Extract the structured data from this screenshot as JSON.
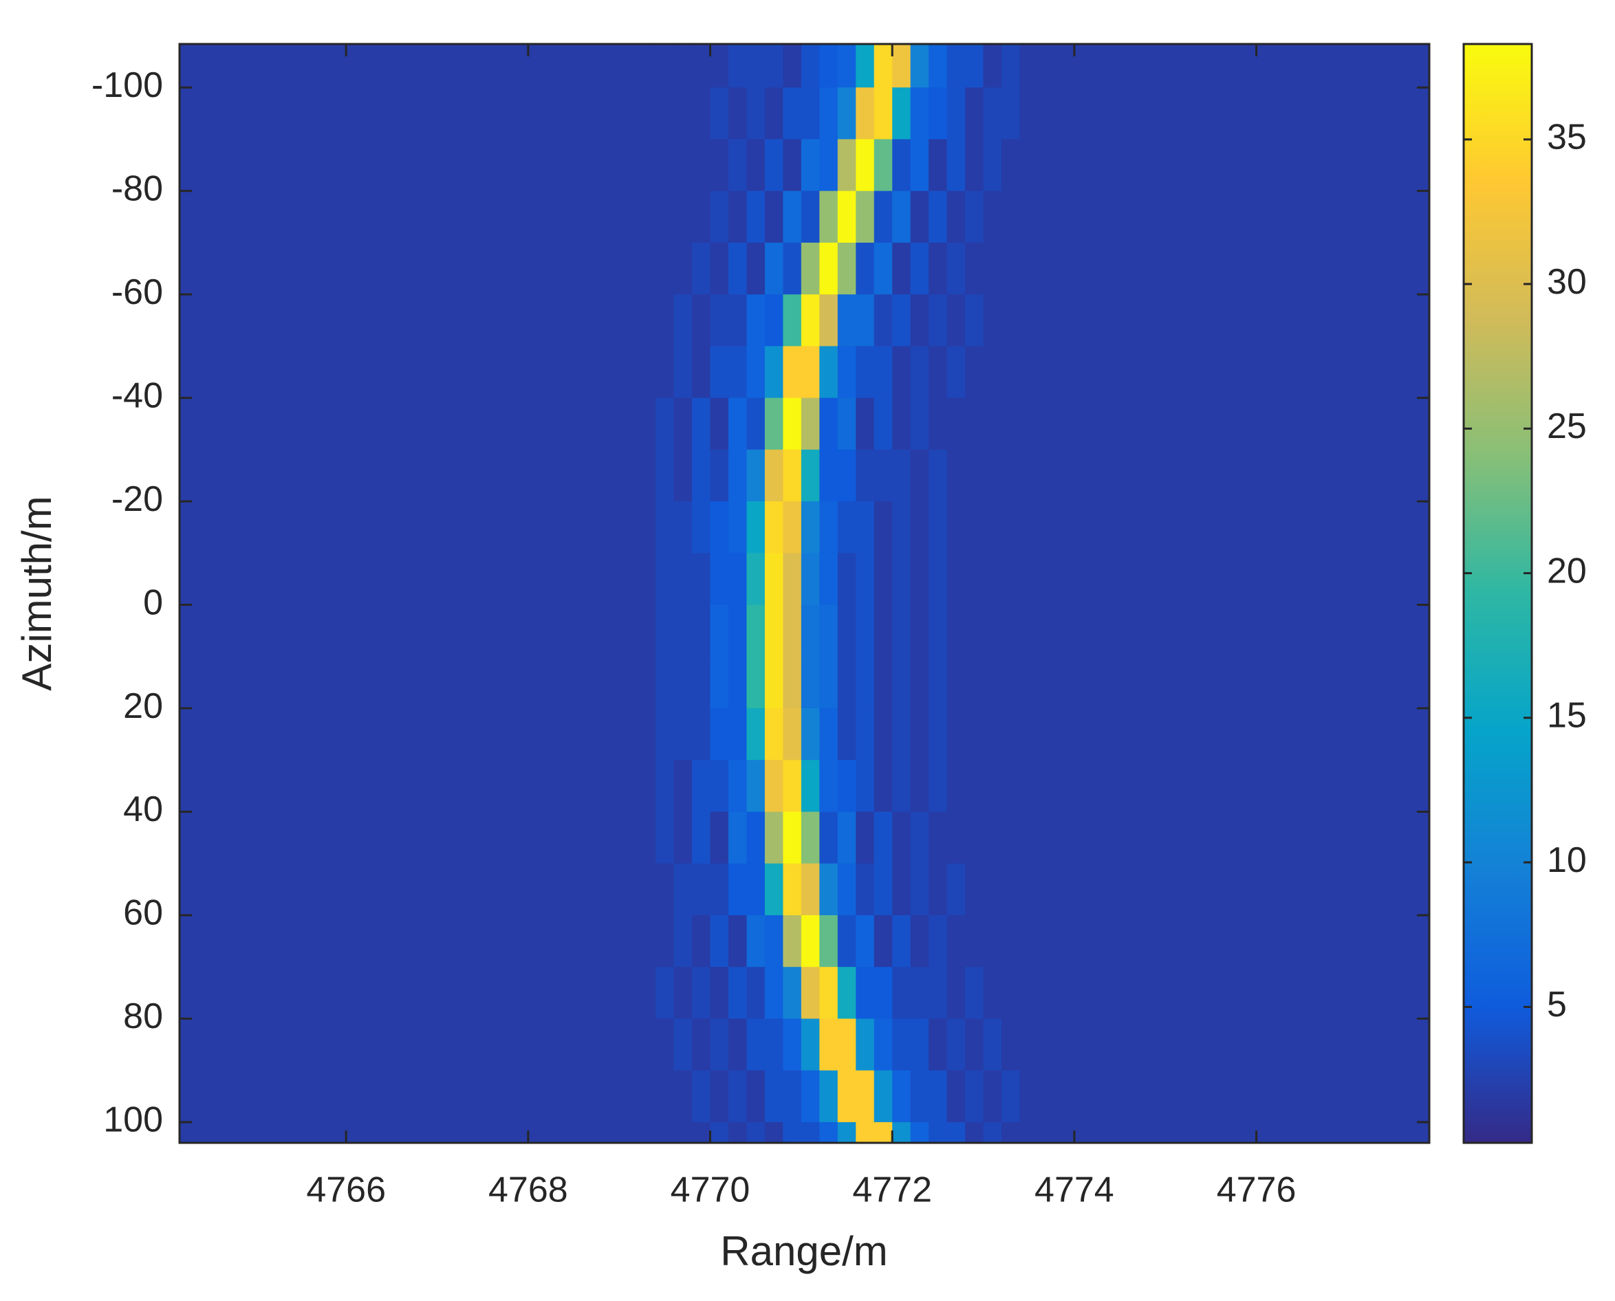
{
  "chart_data": {
    "type": "heatmap",
    "xlabel": "Range/m",
    "ylabel": "Azimuth/m",
    "xlim": [
      4764.17,
      4777.9
    ],
    "xticks": [
      4766,
      4768,
      4770,
      4772,
      4774,
      4776
    ],
    "ylim": [
      -108.4,
      104
    ],
    "y_direction": "reverse",
    "yticks": [
      -100,
      -80,
      -60,
      -40,
      -20,
      0,
      20,
      40,
      60,
      80,
      100
    ],
    "clim": [
      0.3,
      38.3
    ],
    "cticks": [
      5,
      10,
      15,
      20,
      25,
      30,
      35
    ],
    "colormap": [
      "#352a87",
      "#0f5cdd",
      "#1481d6",
      "#06a4ca",
      "#2eb7a4",
      "#87bf77",
      "#d1bb59",
      "#fec832",
      "#f9fb0e"
    ],
    "x_edges": [
      4764.17,
      4769.4,
      4769.6,
      4769.8,
      4770.0,
      4770.2,
      4770.4,
      4770.6,
      4770.8,
      4771.0,
      4771.2,
      4771.4,
      4771.6,
      4771.8,
      4772.0,
      4772.2,
      4772.4,
      4772.6,
      4772.8,
      4773.0,
      4773.2,
      4773.4,
      4777.9
    ],
    "y_edges": [
      -110,
      -100,
      -90,
      -80,
      -70,
      -60,
      -50,
      -40,
      -30,
      -20,
      -10,
      0,
      10,
      20,
      30,
      40,
      50,
      60,
      70,
      80,
      90,
      100,
      110
    ],
    "z": [
      [
        2,
        2,
        2,
        2,
        2,
        3,
        3,
        3,
        2,
        4,
        5,
        6,
        15,
        35,
        32,
        10,
        6,
        4,
        4,
        2,
        3,
        2
      ],
      [
        2,
        2,
        2,
        2,
        3,
        2,
        3,
        2,
        4,
        4,
        6,
        10,
        32,
        35,
        15,
        6,
        5,
        4,
        2,
        3,
        3,
        2
      ],
      [
        2,
        2,
        2,
        2,
        2,
        3,
        2,
        4,
        2,
        7,
        6,
        27,
        38,
        22,
        4,
        6,
        2,
        4,
        2,
        3,
        2,
        2
      ],
      [
        2,
        2,
        2,
        2,
        3,
        2,
        4,
        2,
        7,
        4,
        25,
        38,
        25,
        4,
        7,
        2,
        4,
        2,
        3,
        2,
        2,
        2
      ],
      [
        2,
        2,
        2,
        3,
        2,
        4,
        2,
        7,
        4,
        25,
        38,
        25,
        4,
        7,
        2,
        4,
        2,
        3,
        2,
        2,
        2,
        2
      ],
      [
        2,
        2,
        3,
        2,
        3,
        3,
        6,
        5,
        20,
        37,
        29,
        7,
        7,
        3,
        4,
        2,
        3,
        2,
        3,
        2,
        2,
        2
      ],
      [
        2,
        2,
        3,
        2,
        4,
        4,
        6,
        12,
        34,
        34,
        12,
        6,
        4,
        4,
        2,
        3,
        2,
        3,
        2,
        2,
        2,
        2
      ],
      [
        2,
        3,
        2,
        4,
        2,
        6,
        4,
        22,
        38,
        27,
        5,
        7,
        2,
        4,
        2,
        3,
        2,
        2,
        2,
        2,
        2,
        2
      ],
      [
        2,
        3,
        2,
        4,
        3,
        6,
        10,
        31,
        35,
        16,
        5,
        5,
        3,
        3,
        3,
        2,
        3,
        2,
        2,
        2,
        2,
        2
      ],
      [
        2,
        3,
        3,
        4,
        5,
        6,
        15,
        35,
        32,
        10,
        6,
        4,
        4,
        2,
        3,
        2,
        3,
        2,
        2,
        2,
        2,
        2
      ],
      [
        2,
        3,
        3,
        3,
        5,
        5,
        17,
        36,
        30,
        9,
        6,
        3,
        4,
        2,
        3,
        2,
        3,
        2,
        2,
        2,
        2,
        2
      ],
      [
        2,
        3,
        3,
        3,
        6,
        5,
        19,
        36,
        30,
        8,
        7,
        3,
        4,
        2,
        3,
        2,
        3,
        2,
        2,
        2,
        2,
        2
      ],
      [
        2,
        3,
        3,
        3,
        6,
        5,
        19,
        36,
        30,
        8,
        7,
        3,
        4,
        2,
        3,
        2,
        3,
        2,
        2,
        2,
        2,
        2
      ],
      [
        2,
        3,
        3,
        3,
        5,
        5,
        16,
        35,
        31,
        10,
        6,
        3,
        4,
        2,
        3,
        2,
        3,
        2,
        2,
        2,
        2,
        2
      ],
      [
        2,
        3,
        2,
        4,
        4,
        6,
        10,
        32,
        35,
        15,
        6,
        5,
        4,
        2,
        3,
        2,
        3,
        2,
        2,
        2,
        2,
        2
      ],
      [
        2,
        3,
        2,
        4,
        2,
        7,
        5,
        26,
        38,
        24,
        4,
        7,
        2,
        4,
        2,
        3,
        2,
        2,
        2,
        2,
        2,
        2
      ],
      [
        2,
        2,
        3,
        3,
        3,
        5,
        5,
        16,
        35,
        31,
        10,
        6,
        3,
        4,
        2,
        3,
        2,
        3,
        2,
        2,
        2,
        2
      ],
      [
        2,
        2,
        3,
        2,
        4,
        2,
        7,
        6,
        27,
        38,
        22,
        4,
        6,
        2,
        4,
        2,
        3,
        2,
        2,
        2,
        2,
        2
      ],
      [
        2,
        3,
        2,
        3,
        2,
        4,
        3,
        6,
        10,
        31,
        35,
        16,
        5,
        5,
        3,
        3,
        3,
        2,
        3,
        2,
        2,
        2
      ],
      [
        2,
        2,
        3,
        2,
        3,
        2,
        4,
        4,
        6,
        12,
        34,
        34,
        12,
        6,
        4,
        4,
        2,
        3,
        2,
        3,
        2,
        2
      ],
      [
        2,
        2,
        2,
        3,
        2,
        3,
        2,
        4,
        4,
        6,
        12,
        34,
        34,
        12,
        6,
        4,
        4,
        2,
        3,
        2,
        3,
        2
      ],
      [
        2,
        2,
        2,
        2,
        3,
        2,
        3,
        2,
        4,
        4,
        6,
        12,
        34,
        34,
        12,
        6,
        4,
        4,
        2,
        3,
        2,
        2
      ]
    ]
  }
}
